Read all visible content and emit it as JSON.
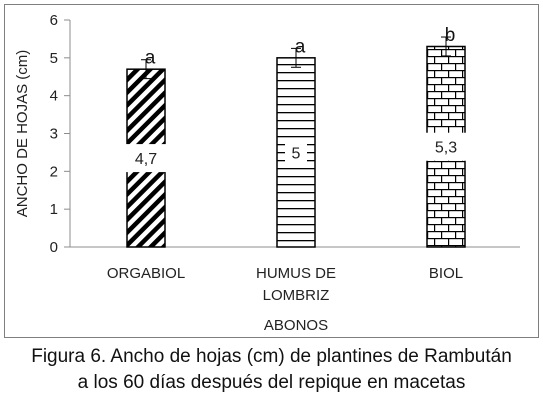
{
  "chart_data": {
    "type": "bar",
    "categories": [
      "ORGABIOL",
      "HUMUS DE|LOMBRIZ",
      "BIOL"
    ],
    "values": [
      4.7,
      5.0,
      5.3
    ],
    "data_labels": [
      "4,7",
      "5",
      "5,3"
    ],
    "error": [
      0.25,
      0.25,
      0.25
    ],
    "significance": [
      "a",
      "a",
      "b"
    ],
    "patterns": [
      "diagonal-stripes",
      "horizontal-lines",
      "brick"
    ],
    "ylim": [
      0,
      6
    ],
    "yticks": [
      "0",
      "1",
      "2",
      "3",
      "4",
      "5",
      "6"
    ],
    "xlabel": "ABONOS",
    "ylabel": "ANCHO DE HOJAS (cm)",
    "grid": false,
    "legend": "none",
    "colors": {
      "bar_fill": "#ffffff",
      "bar_pattern": "#000000",
      "axis": "#8c8c8c"
    }
  },
  "caption": {
    "line1": "Figura 6. Ancho de hojas (cm) de plantines de Rambután",
    "line2": "a los 60 días después del repique en macetas"
  }
}
